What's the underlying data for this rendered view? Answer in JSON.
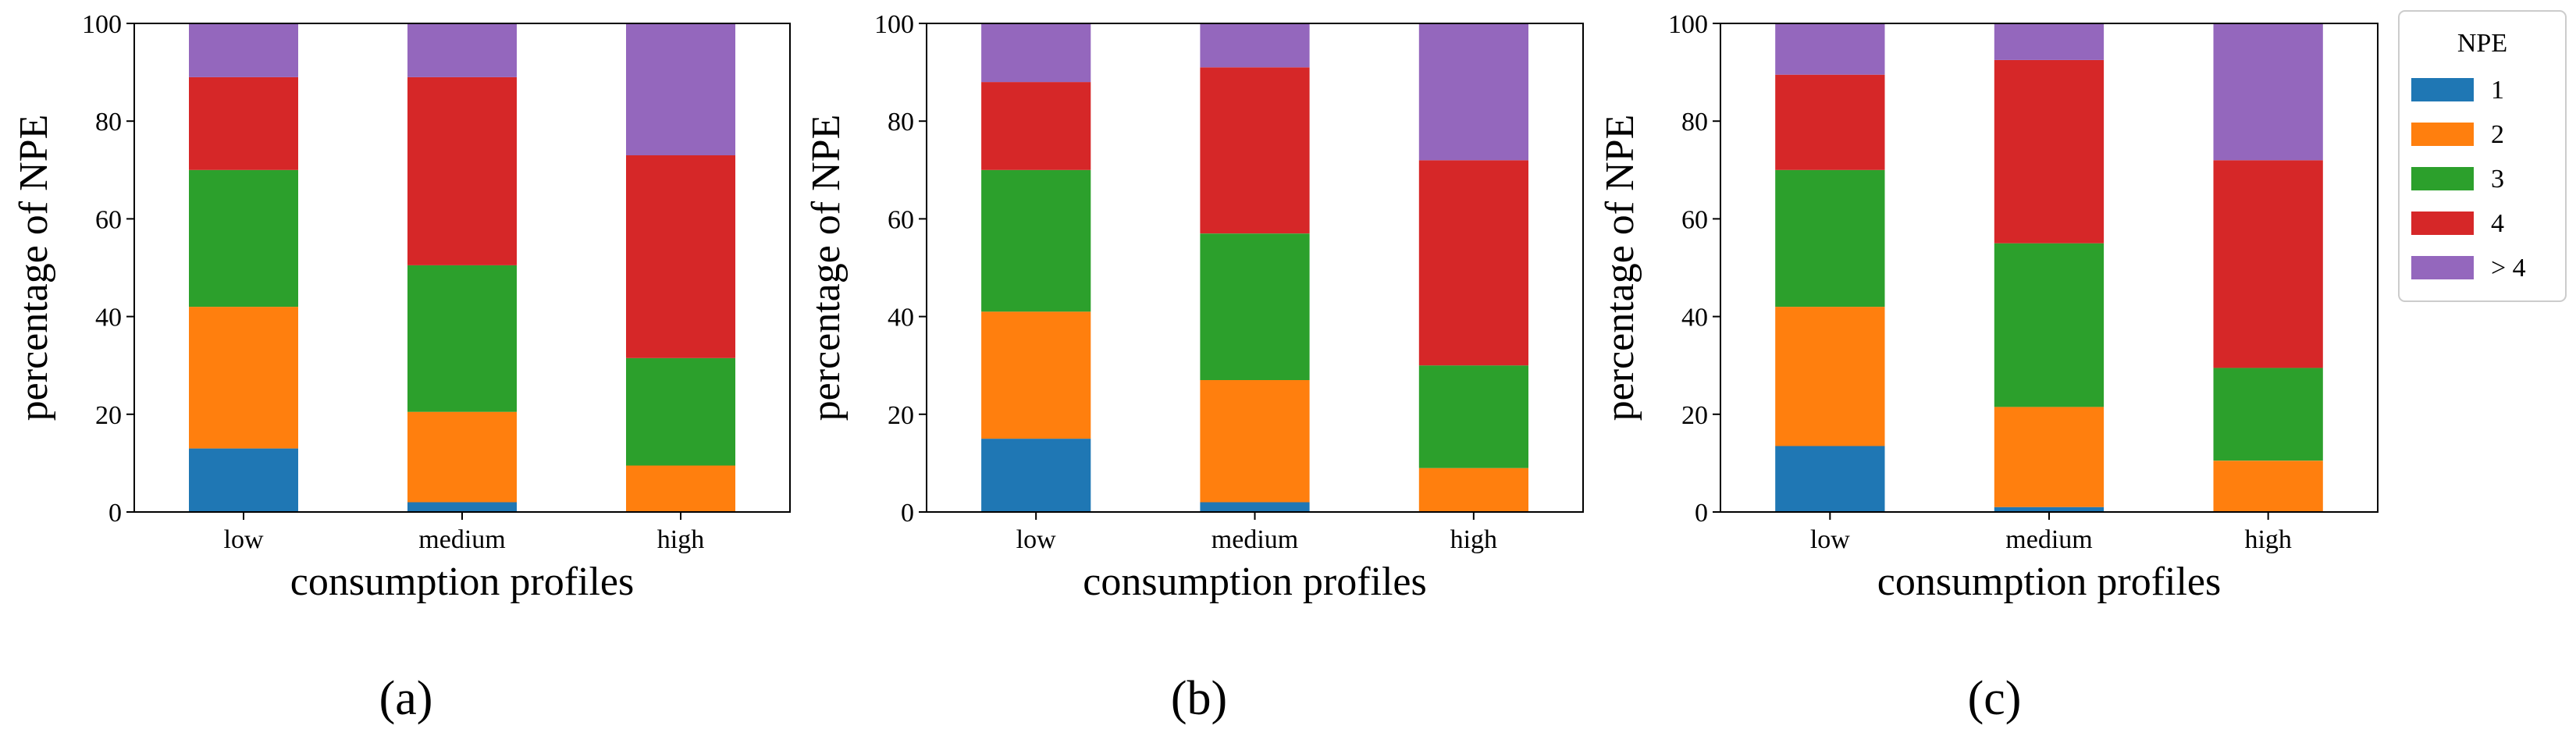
{
  "chart_data": [
    {
      "type": "bar",
      "stacked": true,
      "panel_label": "(a)",
      "xlabel": "consumption profiles",
      "ylabel": "percentage of NPE",
      "ylim": [
        0,
        100
      ],
      "yticks": [
        0,
        20,
        40,
        60,
        80,
        100
      ],
      "categories": [
        "low",
        "medium",
        "high"
      ],
      "series": [
        {
          "name": "1",
          "values": [
            13,
            2,
            0
          ]
        },
        {
          "name": "2",
          "values": [
            29,
            18.5,
            9.5
          ]
        },
        {
          "name": "3",
          "values": [
            28,
            30,
            22
          ]
        },
        {
          "name": "4",
          "values": [
            19,
            38.5,
            41.5
          ]
        },
        {
          "name": "> 4",
          "values": [
            11,
            11,
            27
          ]
        }
      ]
    },
    {
      "type": "bar",
      "stacked": true,
      "panel_label": "(b)",
      "xlabel": "consumption profiles",
      "ylabel": "percentage of NPE",
      "ylim": [
        0,
        100
      ],
      "yticks": [
        0,
        20,
        40,
        60,
        80,
        100
      ],
      "categories": [
        "low",
        "medium",
        "high"
      ],
      "series": [
        {
          "name": "1",
          "values": [
            15,
            2,
            0
          ]
        },
        {
          "name": "2",
          "values": [
            26,
            25,
            9
          ]
        },
        {
          "name": "3",
          "values": [
            29,
            30,
            21
          ]
        },
        {
          "name": "4",
          "values": [
            18,
            34,
            42
          ]
        },
        {
          "name": "> 4",
          "values": [
            12,
            9,
            28
          ]
        }
      ]
    },
    {
      "type": "bar",
      "stacked": true,
      "panel_label": "(c)",
      "xlabel": "consumption profiles",
      "ylabel": "percentage of NPE",
      "ylim": [
        0,
        100
      ],
      "yticks": [
        0,
        20,
        40,
        60,
        80,
        100
      ],
      "categories": [
        "low",
        "medium",
        "high"
      ],
      "series": [
        {
          "name": "1",
          "values": [
            13.5,
            1,
            0
          ]
        },
        {
          "name": "2",
          "values": [
            28.5,
            20.5,
            10.5
          ]
        },
        {
          "name": "3",
          "values": [
            28,
            33.5,
            19
          ]
        },
        {
          "name": "4",
          "values": [
            19.5,
            37.5,
            42.5
          ]
        },
        {
          "name": "> 4",
          "values": [
            10.5,
            7.5,
            28
          ]
        }
      ],
      "legend": {
        "title": "NPE",
        "placement": "outside-right"
      }
    }
  ],
  "colors": [
    "#1f77b4",
    "#ff7f0e",
    "#2ca02c",
    "#d62728",
    "#9467bd"
  ]
}
